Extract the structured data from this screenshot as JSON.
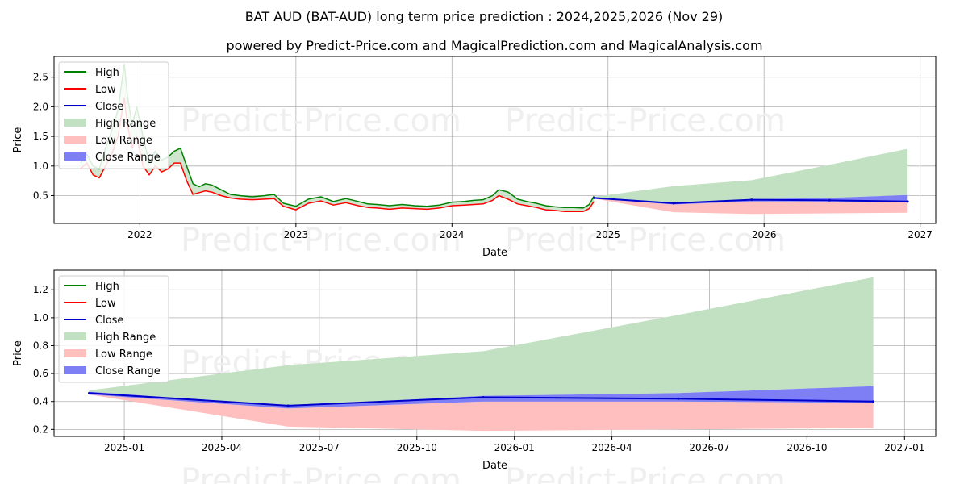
{
  "title": "BAT AUD (BAT-AUD) long term price prediction : 2024,2025,2026 (Nov 29)",
  "subtitle": "powered by Predict-Price.com and MagicalPrediction.com and MagicalAnalysis.com",
  "watermark": "Predict-Price.com",
  "colors": {
    "high": "#008000",
    "low": "#ff0000",
    "close": "#0000cc",
    "high_range": "#c2e0c2",
    "low_range": "#ffbfbf",
    "close_range": "#7f7ff5",
    "grid": "#b0b0b0",
    "watermark": "#efefef"
  },
  "chart_data": [
    {
      "type": "line",
      "title": "BAT AUD (BAT-AUD) long term price prediction : 2024,2025,2026 (Nov 29)",
      "xlabel": "Date",
      "ylabel": "Price",
      "xlim": [
        2021.45,
        2027.1
      ],
      "ylim": [
        0.03,
        2.85
      ],
      "xticks": [
        {
          "value": 2022,
          "label": "2022"
        },
        {
          "value": 2023,
          "label": "2023"
        },
        {
          "value": 2024,
          "label": "2024"
        },
        {
          "value": 2025,
          "label": "2025"
        },
        {
          "value": 2026,
          "label": "2026"
        },
        {
          "value": 2027,
          "label": "2027"
        }
      ],
      "yticks": [
        {
          "value": 0.5,
          "label": "0.5"
        },
        {
          "value": 1.0,
          "label": "1.0"
        },
        {
          "value": 1.5,
          "label": "1.5"
        },
        {
          "value": 2.0,
          "label": "2.0"
        },
        {
          "value": 2.5,
          "label": "2.5"
        }
      ],
      "grid": true,
      "legend_position": "top-left",
      "legend": [
        "High",
        "Low",
        "Close",
        "High Range",
        "Low Range",
        "Close Range"
      ],
      "history": {
        "x": [
          2021.62,
          2021.66,
          2021.7,
          2021.74,
          2021.78,
          2021.82,
          2021.86,
          2021.9,
          2021.92,
          2021.95,
          2021.98,
          2022.02,
          2022.06,
          2022.1,
          2022.14,
          2022.18,
          2022.22,
          2022.26,
          2022.3,
          2022.34,
          2022.38,
          2022.42,
          2022.46,
          2022.52,
          2022.58,
          2022.64,
          2022.72,
          2022.8,
          2022.86,
          2022.92,
          2023.0,
          2023.08,
          2023.16,
          2023.24,
          2023.32,
          2023.4,
          2023.46,
          2023.52,
          2023.6,
          2023.68,
          2023.76,
          2023.84,
          2023.92,
          2024.0,
          2024.08,
          2024.14,
          2024.2,
          2024.26,
          2024.3,
          2024.36,
          2024.42,
          2024.48,
          2024.54,
          2024.6,
          2024.66,
          2024.72,
          2024.78,
          2024.84,
          2024.88,
          2024.91
        ],
        "high": [
          1.05,
          1.2,
          1.0,
          0.95,
          1.3,
          1.6,
          1.95,
          2.72,
          2.2,
          1.7,
          2.0,
          1.5,
          1.05,
          1.25,
          1.1,
          1.15,
          1.25,
          1.3,
          1.0,
          0.7,
          0.65,
          0.7,
          0.68,
          0.6,
          0.52,
          0.5,
          0.48,
          0.5,
          0.52,
          0.37,
          0.32,
          0.44,
          0.48,
          0.4,
          0.45,
          0.4,
          0.36,
          0.35,
          0.33,
          0.35,
          0.33,
          0.32,
          0.34,
          0.39,
          0.4,
          0.42,
          0.43,
          0.5,
          0.6,
          0.56,
          0.44,
          0.4,
          0.37,
          0.33,
          0.31,
          0.3,
          0.3,
          0.29,
          0.35,
          0.49
        ],
        "low": [
          0.95,
          1.05,
          0.85,
          0.8,
          1.0,
          1.2,
          1.5,
          2.15,
          1.7,
          1.3,
          1.5,
          1.0,
          0.85,
          1.0,
          0.9,
          0.95,
          1.05,
          1.05,
          0.75,
          0.52,
          0.55,
          0.58,
          0.56,
          0.5,
          0.46,
          0.44,
          0.43,
          0.44,
          0.45,
          0.32,
          0.26,
          0.37,
          0.41,
          0.34,
          0.38,
          0.33,
          0.3,
          0.29,
          0.27,
          0.29,
          0.28,
          0.27,
          0.29,
          0.33,
          0.34,
          0.35,
          0.36,
          0.42,
          0.5,
          0.44,
          0.36,
          0.33,
          0.3,
          0.26,
          0.25,
          0.23,
          0.23,
          0.23,
          0.28,
          0.4
        ]
      },
      "forecast": {
        "x": [
          2024.91,
          2025.42,
          2025.92,
          2026.42,
          2026.92
        ],
        "close": [
          0.46,
          0.37,
          0.43,
          0.42,
          0.4
        ],
        "high_range": [
          0.48,
          0.66,
          0.76,
          1.02,
          1.29
        ],
        "low_range": [
          0.45,
          0.22,
          0.19,
          0.2,
          0.21
        ],
        "close_upper": [
          0.47,
          0.37,
          0.44,
          0.46,
          0.51
        ],
        "close_lower": [
          0.45,
          0.35,
          0.4,
          0.4,
          0.39
        ]
      }
    },
    {
      "type": "line",
      "title": "",
      "xlabel": "Date",
      "ylabel": "Price",
      "xlim": [
        2024.82,
        2027.08
      ],
      "ylim": [
        0.15,
        1.34
      ],
      "xticks": [
        {
          "value": 2025.0,
          "label": "2025-01"
        },
        {
          "value": 2025.25,
          "label": "2025-04"
        },
        {
          "value": 2025.5,
          "label": "2025-07"
        },
        {
          "value": 2025.75,
          "label": "2025-10"
        },
        {
          "value": 2026.0,
          "label": "2026-01"
        },
        {
          "value": 2026.25,
          "label": "2026-04"
        },
        {
          "value": 2026.5,
          "label": "2026-07"
        },
        {
          "value": 2026.75,
          "label": "2026-10"
        },
        {
          "value": 2027.0,
          "label": "2027-01"
        }
      ],
      "yticks": [
        {
          "value": 0.2,
          "label": "0.2"
        },
        {
          "value": 0.4,
          "label": "0.4"
        },
        {
          "value": 0.6,
          "label": "0.6"
        },
        {
          "value": 0.8,
          "label": "0.8"
        },
        {
          "value": 1.0,
          "label": "1.0"
        },
        {
          "value": 1.2,
          "label": "1.2"
        }
      ],
      "grid": true,
      "legend_position": "top-left",
      "legend": [
        "High",
        "Low",
        "Close",
        "High Range",
        "Low Range",
        "Close Range"
      ],
      "forecast": {
        "x": [
          2024.91,
          2025.42,
          2025.92,
          2026.42,
          2026.92
        ],
        "close": [
          0.46,
          0.37,
          0.43,
          0.42,
          0.4
        ],
        "high_range": [
          0.48,
          0.66,
          0.76,
          1.02,
          1.29
        ],
        "low_range": [
          0.45,
          0.22,
          0.19,
          0.2,
          0.21
        ],
        "close_upper": [
          0.47,
          0.37,
          0.44,
          0.46,
          0.51
        ],
        "close_lower": [
          0.45,
          0.35,
          0.4,
          0.4,
          0.39
        ]
      }
    }
  ]
}
